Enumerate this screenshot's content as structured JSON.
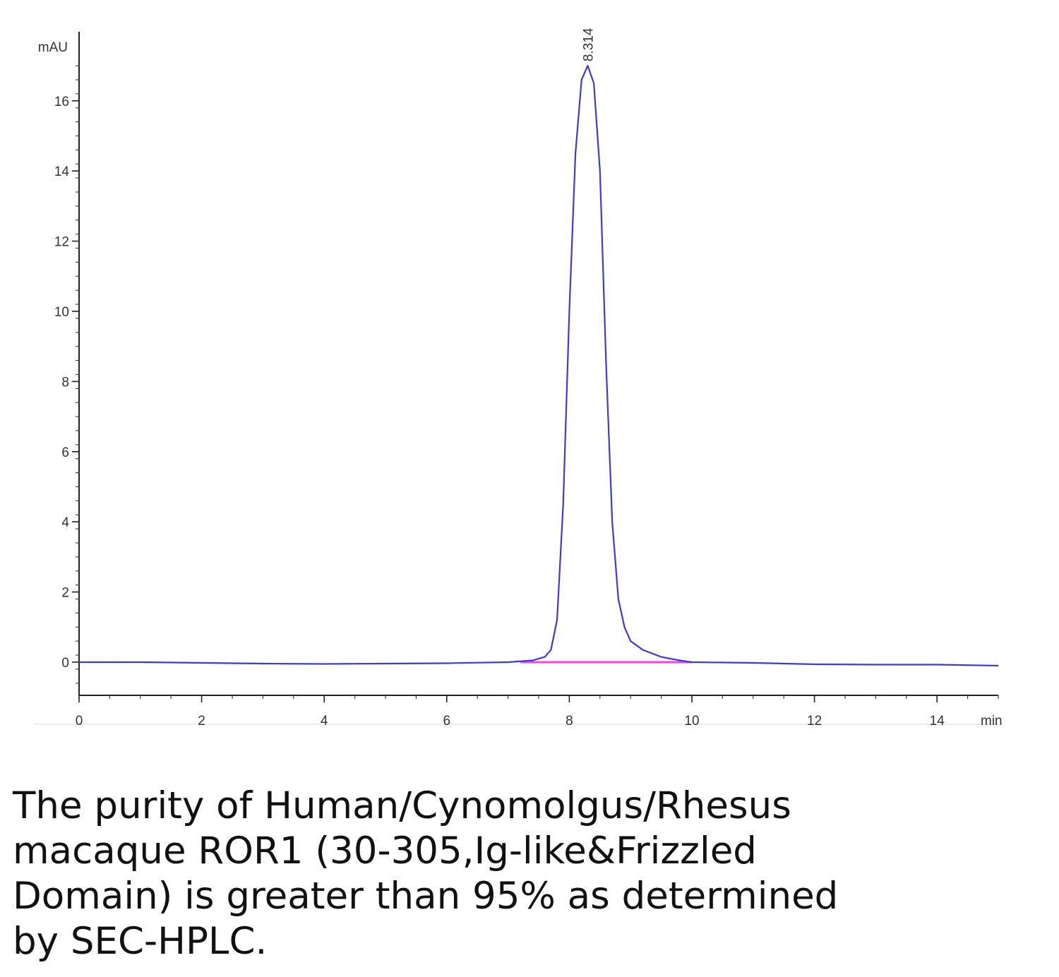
{
  "chart_data": {
    "type": "line",
    "title": "",
    "xlabel": "",
    "ylabel": "",
    "x_unit": "min",
    "y_unit": "mAU",
    "xlim": [
      0,
      15
    ],
    "ylim": [
      -1,
      17.6
    ],
    "x_ticks": [
      "0",
      "2",
      "4",
      "6",
      "8",
      "10",
      "12",
      "14"
    ],
    "y_ticks": [
      "0",
      "2",
      "4",
      "6",
      "8",
      "10",
      "12",
      "14",
      "16"
    ],
    "grid": false,
    "series": [
      {
        "color": "#3b3bd6",
        "x": [
          0,
          1,
          2,
          3,
          4,
          5,
          6,
          7,
          7.4,
          7.6,
          7.7,
          7.8,
          7.9,
          8.0,
          8.1,
          8.2,
          8.3,
          8.4,
          8.5,
          8.6,
          8.7,
          8.8,
          8.9,
          9.0,
          9.2,
          9.5,
          9.8,
          10.0,
          11,
          12,
          13,
          14,
          15
        ],
        "y": [
          0.0,
          0.0,
          -0.02,
          -0.04,
          -0.05,
          -0.04,
          -0.03,
          0.0,
          0.05,
          0.15,
          0.35,
          1.2,
          4.5,
          10.0,
          14.5,
          16.6,
          17.0,
          16.5,
          14.0,
          8.5,
          4.0,
          1.8,
          1.0,
          0.6,
          0.35,
          0.15,
          0.05,
          0.0,
          -0.02,
          -0.06,
          -0.07,
          -0.07,
          -0.1
        ]
      }
    ],
    "baseline": {
      "color": "#ff44dd",
      "x": [
        7.2,
        10.0
      ],
      "y": [
        0.0,
        0.0
      ]
    },
    "annotations": [
      {
        "text": "8.314",
        "x": 8.314,
        "y": 17.0
      }
    ]
  },
  "caption": "The purity of Human/Cynomolgus/Rhesus macaque ROR1 (30-305,Ig-like&Frizzled Domain) is greater than 95% as determined by SEC-HPLC."
}
